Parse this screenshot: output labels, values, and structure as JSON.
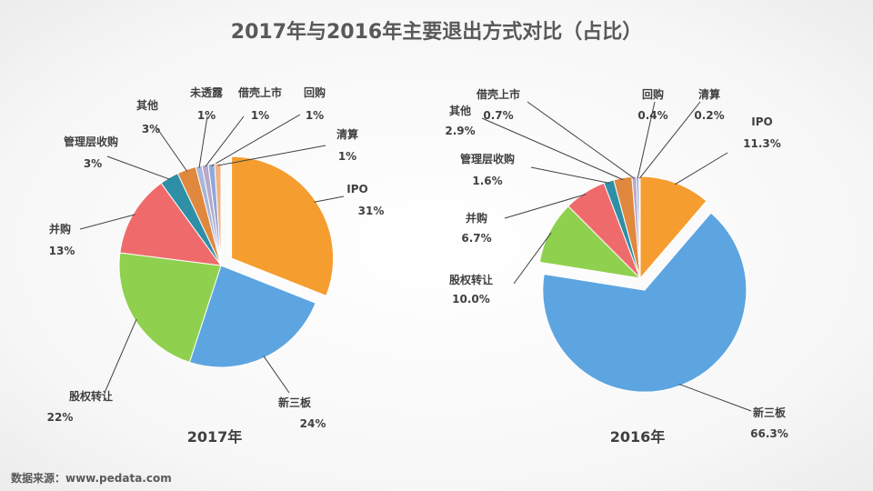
{
  "page": {
    "title": "2017年与2016年主要退出方式对比（占比）",
    "source": "数据来源：www.pedata.com"
  },
  "chart_data": [
    {
      "type": "pie",
      "year_label": "2017年",
      "unit": "%",
      "slices": [
        {
          "name": "IPO",
          "value": 31,
          "label": "31%",
          "color": "#F59D2F",
          "exploded": true
        },
        {
          "name": "新三板",
          "value": 24,
          "label": "24%",
          "color": "#5DA5E0"
        },
        {
          "name": "股权转让",
          "value": 22,
          "label": "22%",
          "color": "#8FD14F"
        },
        {
          "name": "并购",
          "value": 13,
          "label": "13%",
          "color": "#EF6B6B"
        },
        {
          "name": "管理层收购",
          "value": 3,
          "label": "3%",
          "color": "#2E8FA6"
        },
        {
          "name": "其他",
          "value": 3,
          "label": "3%",
          "color": "#E0883E"
        },
        {
          "name": "未透露",
          "value": 1,
          "label": "1%",
          "color": "#A9B6D8"
        },
        {
          "name": "借壳上市",
          "value": 1,
          "label": "1%",
          "color": "#B8A9C9"
        },
        {
          "name": "回购",
          "value": 1,
          "label": "1%",
          "color": "#8EA9DB"
        },
        {
          "name": "清算",
          "value": 1,
          "label": "1%",
          "color": "#F4B183"
        }
      ]
    },
    {
      "type": "pie",
      "year_label": "2016年",
      "unit": "%",
      "slices": [
        {
          "name": "IPO",
          "value": 11.3,
          "label": "11.3%",
          "color": "#F59D2F"
        },
        {
          "name": "新三板",
          "value": 66.3,
          "label": "66.3%",
          "color": "#5DA5E0",
          "exploded": true
        },
        {
          "name": "股权转让",
          "value": 10.0,
          "label": "10.0%",
          "color": "#8FD14F"
        },
        {
          "name": "并购",
          "value": 6.7,
          "label": "6.7%",
          "color": "#EF6B6B"
        },
        {
          "name": "管理层收购",
          "value": 1.6,
          "label": "1.6%",
          "color": "#2E8FA6"
        },
        {
          "name": "其他",
          "value": 2.9,
          "label": "2.9%",
          "color": "#E0883E"
        },
        {
          "name": "借壳上市",
          "value": 0.7,
          "label": "0.7%",
          "color": "#B8A9C9"
        },
        {
          "name": "回购",
          "value": 0.4,
          "label": "0.4%",
          "color": "#8EA9DB"
        },
        {
          "name": "清算",
          "value": 0.2,
          "label": "0.2%",
          "color": "#F4B183"
        }
      ]
    }
  ]
}
